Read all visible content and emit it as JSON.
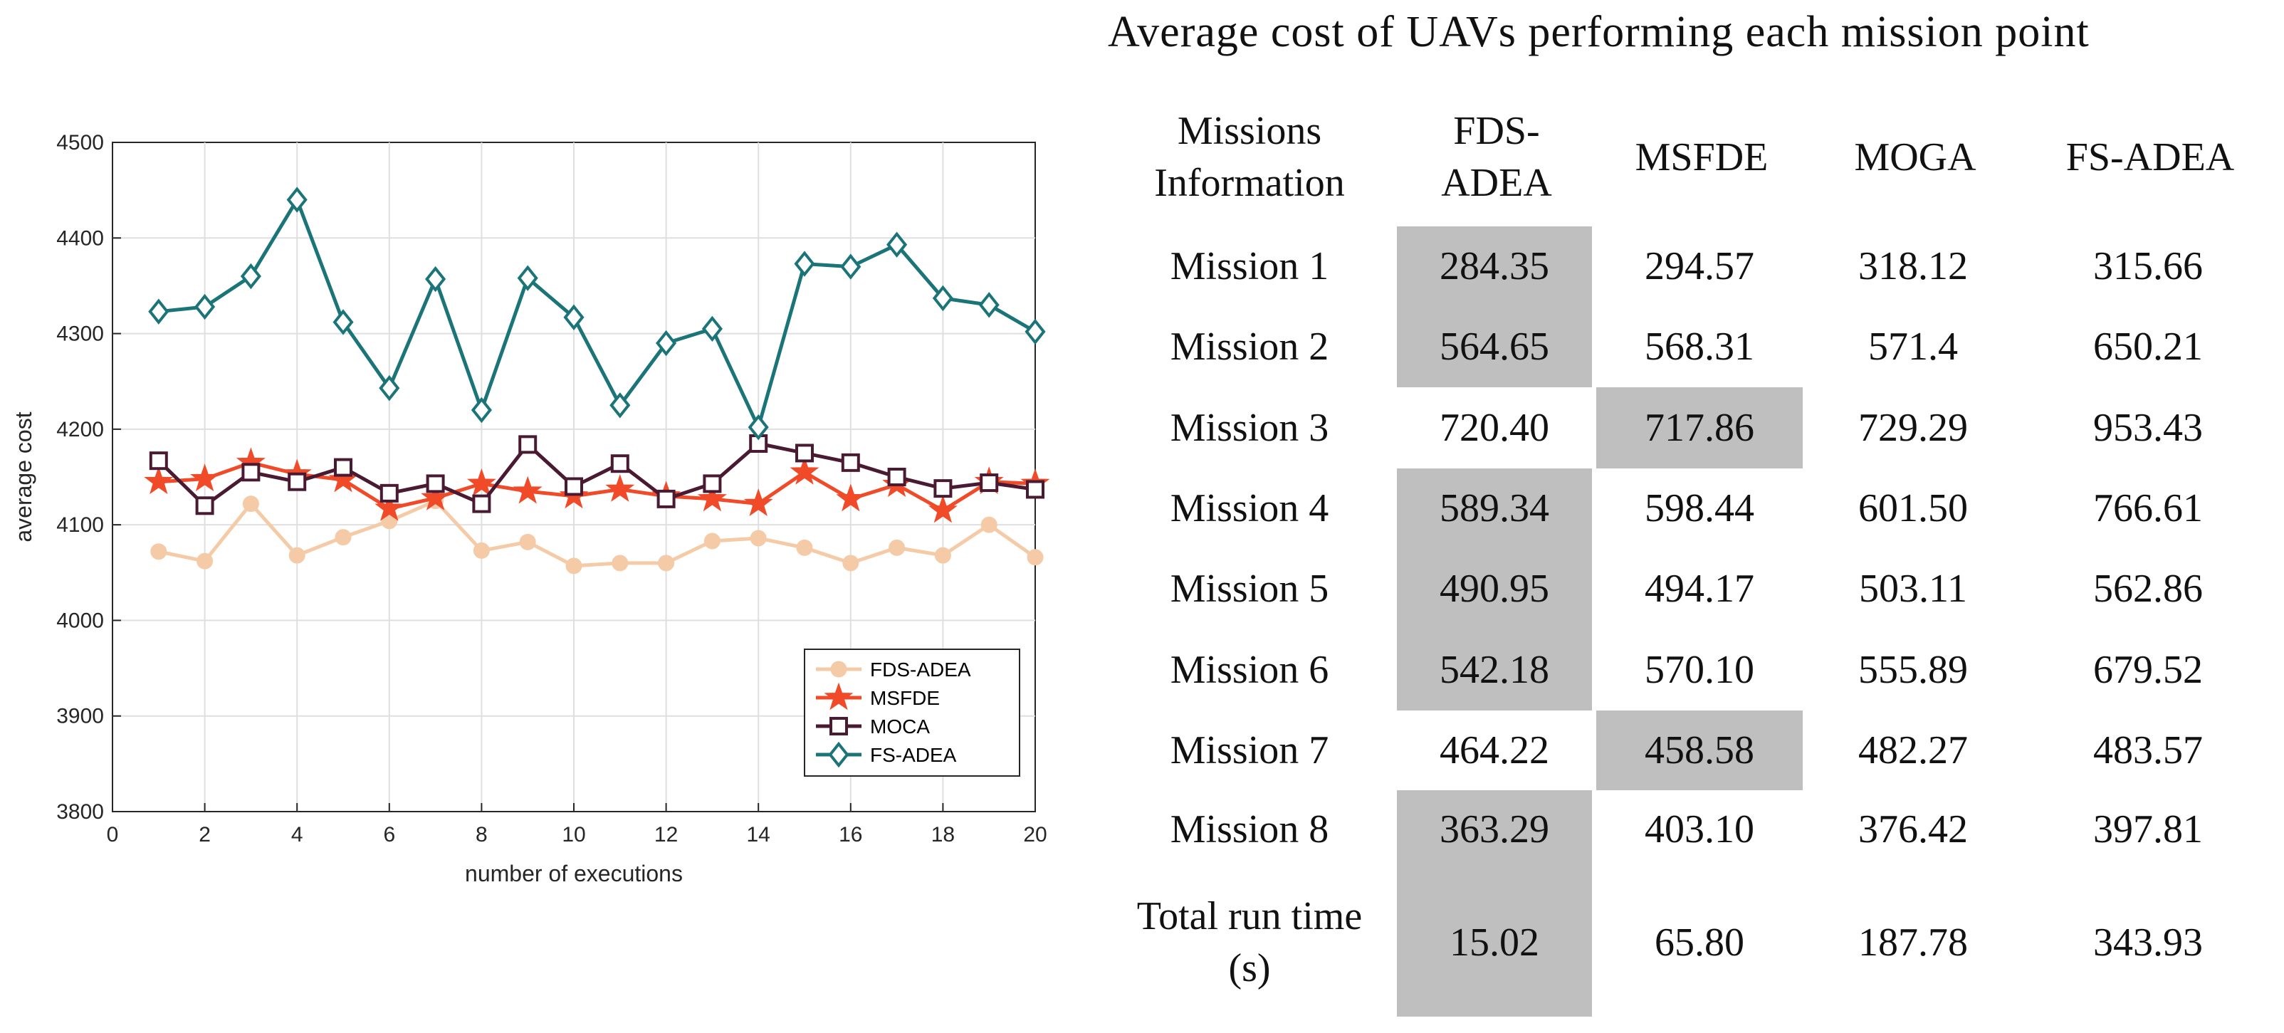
{
  "chart_data": {
    "type": "line",
    "title": "",
    "xlabel": "number of executions",
    "ylabel": "average cost",
    "xlim": [
      0,
      20
    ],
    "ylim": [
      3800,
      4500
    ],
    "xticks": [
      0,
      2,
      4,
      6,
      8,
      10,
      12,
      14,
      16,
      18,
      20
    ],
    "yticks": [
      3800,
      3900,
      4000,
      4100,
      4200,
      4300,
      4400,
      4500
    ],
    "grid": true,
    "legend_position": "bottom-right",
    "x": [
      1,
      2,
      3,
      4,
      5,
      6,
      7,
      8,
      9,
      10,
      11,
      12,
      13,
      14,
      15,
      16,
      17,
      18,
      19,
      20
    ],
    "series": [
      {
        "name": "FDS-ADEA",
        "color": "#f5cba7",
        "marker": "circle",
        "values": [
          4072,
          4062,
          4122,
          4068,
          4087,
          4104,
          4125,
          4073,
          4082,
          4057,
          4060,
          4060,
          4083,
          4086,
          4076,
          4060,
          4076,
          4068,
          4100,
          4066
        ]
      },
      {
        "name": "MSFDE",
        "color": "#f04a28",
        "marker": "star",
        "values": [
          4145,
          4148,
          4165,
          4153,
          4147,
          4117,
          4128,
          4143,
          4135,
          4130,
          4137,
          4130,
          4127,
          4122,
          4155,
          4127,
          4142,
          4115,
          4145,
          4143
        ]
      },
      {
        "name": "MOCA",
        "color": "#4a1a33",
        "marker": "square",
        "values": [
          4167,
          4120,
          4155,
          4145,
          4160,
          4133,
          4143,
          4122,
          4184,
          4140,
          4164,
          4127,
          4143,
          4185,
          4175,
          4165,
          4150,
          4138,
          4144,
          4137
        ]
      },
      {
        "name": "FS-ADEA",
        "color": "#1b7578",
        "marker": "diamond",
        "values": [
          4323,
          4328,
          4360,
          4440,
          4312,
          4243,
          4357,
          4220,
          4358,
          4317,
          4225,
          4290,
          4305,
          4202,
          4373,
          4370,
          4393,
          4337,
          4330,
          4302
        ]
      }
    ]
  },
  "table": {
    "title": "Average cost of UAVs performing each mission point",
    "headers": [
      "Missions\nInformation",
      "FDS-\nADEA",
      "MSFDE",
      "MOGA",
      "FS-ADEA"
    ],
    "rows": [
      {
        "label": "Mission 1",
        "values": [
          "284.35",
          "294.57",
          "318.12",
          "315.66"
        ],
        "highlight": 0
      },
      {
        "label": "Mission 2",
        "values": [
          "564.65",
          "568.31",
          "571.4",
          "650.21"
        ],
        "highlight": 0
      },
      {
        "label": "Mission 3",
        "values": [
          "720.40",
          "717.86",
          "729.29",
          "953.43"
        ],
        "highlight": 1
      },
      {
        "label": "Mission 4",
        "values": [
          "589.34",
          "598.44",
          "601.50",
          "766.61"
        ],
        "highlight": 0
      },
      {
        "label": "Mission 5",
        "values": [
          "490.95",
          "494.17",
          "503.11",
          "562.86"
        ],
        "highlight": 0
      },
      {
        "label": "Mission 6",
        "values": [
          "542.18",
          "570.10",
          "555.89",
          "679.52"
        ],
        "highlight": 0
      },
      {
        "label": "Mission 7",
        "values": [
          "464.22",
          "458.58",
          "482.27",
          "483.57"
        ],
        "highlight": 1
      },
      {
        "label": "Mission 8",
        "values": [
          "363.29",
          "403.10",
          "376.42",
          "397.81"
        ],
        "highlight": 0
      },
      {
        "label": "Total run time\n(s)",
        "values": [
          "15.02",
          "65.80",
          "187.78",
          "343.93"
        ],
        "highlight": 0
      }
    ]
  }
}
